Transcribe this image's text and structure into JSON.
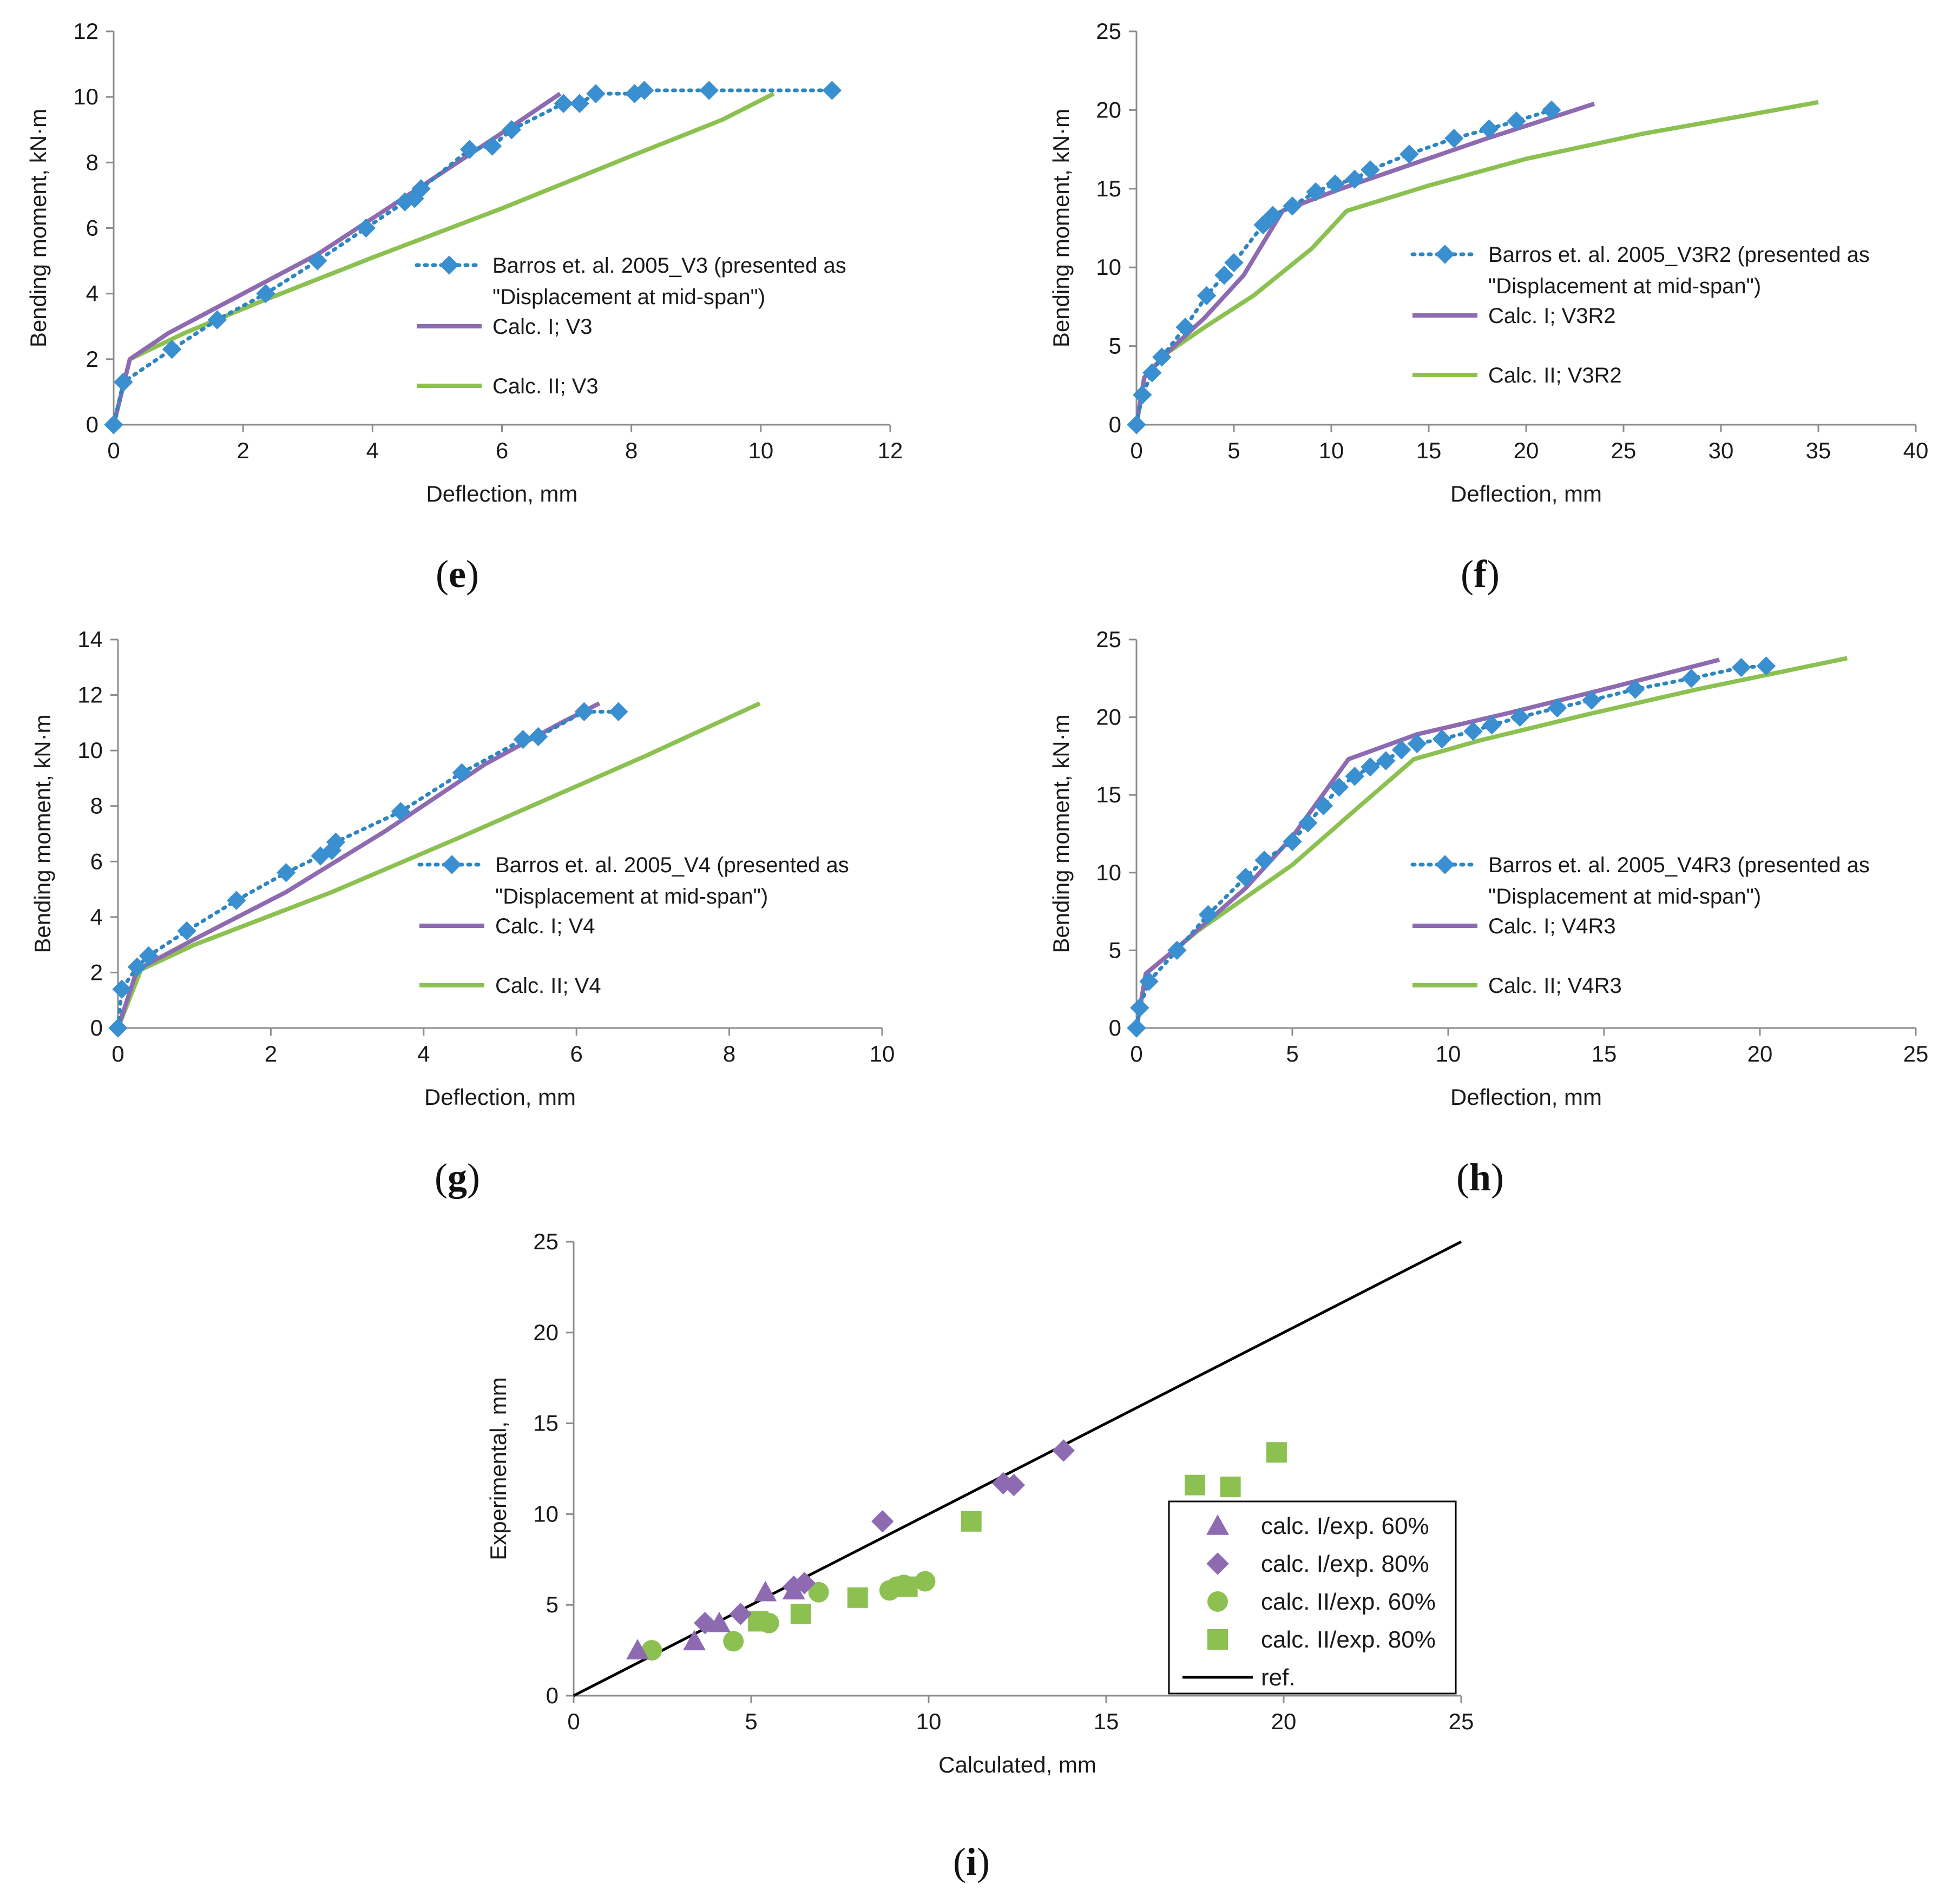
{
  "figure": {
    "colors": {
      "experimental": "#2e86c1",
      "experimental_marker": "#3a8fd0",
      "calc1": "#8e6bb1",
      "calc2": "#8cc152",
      "ref": "#000000",
      "axis": "#8c8c8c"
    }
  },
  "chart_data": [
    {
      "id": "e",
      "type": "line",
      "label": "e",
      "xlabel": "Deflection, mm",
      "ylabel": "Bending moment, kN·m",
      "xlim": [
        0,
        12
      ],
      "ylim": [
        0,
        12
      ],
      "xticks": [
        0,
        2,
        4,
        6,
        8,
        10,
        12
      ],
      "yticks": [
        0,
        2,
        4,
        6,
        8,
        10,
        12
      ],
      "legend": [
        "Barros et. al. 2005_V3 (presented as",
        "\"Displacement at mid-span\")",
        "Calc. I; V3",
        "Calc. II; V3"
      ],
      "series": [
        {
          "name": "Barros et. al. 2005_V3 (presented as \"Displacement at mid-span\")",
          "style": "experimental",
          "x": [
            0,
            0.15,
            0.9,
            1.6,
            2.35,
            3.15,
            3.9,
            4.5,
            4.65,
            4.75,
            5.5,
            5.85,
            6.15,
            6.95,
            7.2,
            7.45,
            8.05,
            8.2,
            9.2,
            11.1
          ],
          "y": [
            0,
            1.3,
            2.3,
            3.2,
            4.0,
            5.0,
            6.0,
            6.8,
            6.9,
            7.2,
            8.4,
            8.5,
            9.0,
            9.8,
            9.8,
            10.1,
            10.1,
            10.2,
            10.2,
            10.2
          ]
        },
        {
          "name": "Calc. I; V3",
          "style": "calc1",
          "x": [
            0,
            0.25,
            0.85,
            2.0,
            3.15,
            4.7,
            6.0,
            6.9
          ],
          "y": [
            0,
            2.0,
            2.8,
            4.0,
            5.2,
            7.2,
            8.9,
            10.1
          ]
        },
        {
          "name": "Calc. II; V3",
          "style": "calc2",
          "x": [
            0,
            0.25,
            1.1,
            2.2,
            4.0,
            6.0,
            8.0,
            9.4,
            10.2
          ],
          "y": [
            0,
            2.0,
            2.8,
            3.7,
            5.1,
            6.6,
            8.2,
            9.3,
            10.1
          ]
        }
      ]
    },
    {
      "id": "f",
      "type": "line",
      "label": "f",
      "xlabel": "Deflection, mm",
      "ylabel": "Bending moment, kN·m",
      "xlim": [
        0,
        40
      ],
      "ylim": [
        0,
        25
      ],
      "xticks": [
        0,
        5,
        10,
        15,
        20,
        25,
        30,
        35,
        40
      ],
      "yticks": [
        0,
        5,
        10,
        15,
        20,
        25
      ],
      "legend": [
        "Barros et. al. 2005_V3R2 (presented as",
        "\"Displacement at mid-span\")",
        "Calc. I; V3R2",
        "Calc. II; V3R2"
      ],
      "series": [
        {
          "name": "Barros et. al. 2005_V3R2 (presented as \"Displacement at mid-span\")",
          "style": "experimental",
          "x": [
            0,
            0.3,
            0.8,
            1.3,
            2.5,
            3.6,
            4.5,
            5.0,
            6.5,
            7.0,
            8.0,
            9.2,
            10.2,
            11.2,
            12.0,
            14.0,
            16.3,
            18.1,
            19.5,
            21.3
          ],
          "y": [
            0,
            1.9,
            3.3,
            4.3,
            6.2,
            8.2,
            9.5,
            10.3,
            12.7,
            13.3,
            13.9,
            14.8,
            15.3,
            15.6,
            16.2,
            17.2,
            18.2,
            18.8,
            19.3,
            20.0
          ]
        },
        {
          "name": "Calc. I; V3R2",
          "style": "calc1",
          "x": [
            0,
            0.4,
            1.5,
            3.5,
            5.5,
            7.5,
            10.5,
            14.0,
            18.0,
            21.5,
            23.5
          ],
          "y": [
            0,
            3.0,
            4.5,
            6.8,
            9.5,
            13.6,
            15.0,
            16.5,
            18.2,
            19.6,
            20.4
          ]
        },
        {
          "name": "Calc. II; V3R2",
          "style": "calc2",
          "x": [
            0,
            0.4,
            1.5,
            3.5,
            6.0,
            9.0,
            10.8,
            15.0,
            20.0,
            26.0,
            31.0,
            35.0
          ],
          "y": [
            0,
            3.0,
            4.5,
            6.2,
            8.2,
            11.2,
            13.6,
            15.2,
            16.9,
            18.5,
            19.6,
            20.5
          ]
        }
      ]
    },
    {
      "id": "g",
      "type": "line",
      "label": "g",
      "xlabel": "Deflection, mm",
      "ylabel": "Bending moment, kN·m",
      "xlim": [
        0,
        10
      ],
      "ylim": [
        0,
        14
      ],
      "xticks": [
        0,
        2,
        4,
        6,
        8,
        10
      ],
      "yticks": [
        0,
        2,
        4,
        6,
        8,
        10,
        12,
        14
      ],
      "legend": [
        "Barros et. al. 2005_V4 (presented as",
        "\"Displacement at mid-span\")",
        "Calc. I; V4",
        "Calc. II; V4"
      ],
      "series": [
        {
          "name": "Barros et. al. 2005_V4 (presented as \"Displacement at mid-span\")",
          "style": "experimental",
          "x": [
            0,
            0.05,
            0.25,
            0.4,
            0.9,
            1.55,
            2.2,
            2.65,
            2.8,
            2.85,
            3.7,
            4.5,
            5.3,
            5.5,
            6.1,
            6.55
          ],
          "y": [
            0,
            1.4,
            2.2,
            2.6,
            3.5,
            4.6,
            5.6,
            6.2,
            6.4,
            6.7,
            7.8,
            9.2,
            10.4,
            10.5,
            11.4,
            11.4
          ]
        },
        {
          "name": "Calc. I; V4",
          "style": "calc1",
          "x": [
            0,
            0.25,
            1.0,
            2.2,
            3.5,
            4.8,
            5.8,
            6.3
          ],
          "y": [
            0,
            2.1,
            3.2,
            4.9,
            7.1,
            9.5,
            11.0,
            11.7
          ]
        },
        {
          "name": "Calc. II; V4",
          "style": "calc2",
          "x": [
            0,
            0.3,
            1.0,
            2.8,
            4.5,
            6.9,
            8.4
          ],
          "y": [
            0,
            2.1,
            3.0,
            4.9,
            6.9,
            9.8,
            11.7
          ]
        }
      ]
    },
    {
      "id": "h",
      "type": "line",
      "label": "h",
      "xlabel": "Deflection, mm",
      "ylabel": "Bending moment, kN·m",
      "xlim": [
        0,
        25
      ],
      "ylim": [
        0,
        25
      ],
      "xticks": [
        0,
        5,
        10,
        15,
        20,
        25
      ],
      "yticks": [
        0,
        5,
        10,
        15,
        20,
        25
      ],
      "legend": [
        "Barros et. al. 2005_V4R3 (presented as",
        "\"Displacement at mid-span\")",
        "Calc. I; V4R3",
        "Calc. II; V4R3"
      ],
      "series": [
        {
          "name": "Barros et. al. 2005_V4R3 (presented as \"Displacement at mid-span\")",
          "style": "experimental",
          "x": [
            0,
            0.1,
            0.4,
            1.3,
            2.3,
            3.5,
            4.1,
            5.0,
            5.5,
            6.0,
            6.5,
            7.0,
            7.5,
            8.0,
            8.5,
            9.0,
            9.8,
            10.8,
            11.4,
            12.3,
            13.5,
            14.6,
            16.0,
            17.8,
            19.4,
            20.2
          ],
          "y": [
            0,
            1.3,
            3.0,
            5.0,
            7.3,
            9.7,
            10.8,
            12.0,
            13.2,
            14.3,
            15.5,
            16.2,
            16.8,
            17.2,
            17.9,
            18.3,
            18.6,
            19.1,
            19.5,
            20.0,
            20.6,
            21.1,
            21.8,
            22.5,
            23.2,
            23.3
          ]
        },
        {
          "name": "Calc. I; V4R3",
          "style": "calc1",
          "x": [
            0,
            0.3,
            1.5,
            3.5,
            5.0,
            6.8,
            9.0,
            12.0,
            15.0,
            18.7
          ],
          "y": [
            0,
            3.5,
            5.5,
            9.0,
            12.3,
            17.3,
            18.9,
            20.3,
            21.8,
            23.7
          ]
        },
        {
          "name": "Calc. II; V4R3",
          "style": "calc2",
          "x": [
            0,
            0.3,
            2.0,
            5.0,
            7.0,
            8.9,
            11.0,
            14.5,
            18.0,
            22.8
          ],
          "y": [
            0,
            3.5,
            6.3,
            10.5,
            14.0,
            17.3,
            18.5,
            20.2,
            21.8,
            23.8
          ]
        }
      ]
    },
    {
      "id": "i",
      "type": "scatter",
      "label": "i",
      "xlabel": "Calculated, mm",
      "ylabel": "Experimental, mm",
      "xlim": [
        0,
        25
      ],
      "ylim": [
        0,
        25
      ],
      "xticks": [
        0,
        5,
        10,
        15,
        20,
        25
      ],
      "yticks": [
        0,
        5,
        10,
        15,
        20,
        25
      ],
      "legend": [
        "calc. I/exp. 60%",
        "calc. I/exp. 80%",
        "calc. II/exp. 60%",
        "calc. II/exp. 80%",
        "ref."
      ],
      "series": [
        {
          "name": "calc. I/exp. 60%",
          "marker": "triangle",
          "style": "calc1",
          "x": [
            1.8,
            3.4,
            4.1,
            5.4,
            6.2
          ],
          "y": [
            2.5,
            3.0,
            4.0,
            5.7,
            5.8
          ]
        },
        {
          "name": "calc. I/exp. 80%",
          "marker": "diamond",
          "style": "calc1",
          "x": [
            3.7,
            4.7,
            6.2,
            6.5,
            8.7,
            12.1,
            12.4,
            13.8
          ],
          "y": [
            4.0,
            4.5,
            6.0,
            6.2,
            9.6,
            11.7,
            11.6,
            13.5
          ]
        },
        {
          "name": "calc. II/exp. 60%",
          "marker": "circle",
          "style": "calc2",
          "x": [
            2.2,
            4.5,
            5.5,
            6.9,
            8.9,
            9.1,
            9.3,
            9.9
          ],
          "y": [
            2.5,
            3.0,
            4.0,
            5.7,
            5.8,
            6.0,
            6.1,
            6.3
          ]
        },
        {
          "name": "calc. II/exp. 80%",
          "marker": "square",
          "style": "calc2",
          "x": [
            5.2,
            6.4,
            8.0,
            9.4,
            11.2,
            17.5,
            18.5,
            19.8
          ],
          "y": [
            4.1,
            4.5,
            5.4,
            6.0,
            9.6,
            11.6,
            11.5,
            13.4
          ]
        },
        {
          "name": "ref.",
          "type": "line",
          "style": "ref",
          "x": [
            0,
            25
          ],
          "y": [
            0,
            25
          ]
        }
      ]
    }
  ]
}
